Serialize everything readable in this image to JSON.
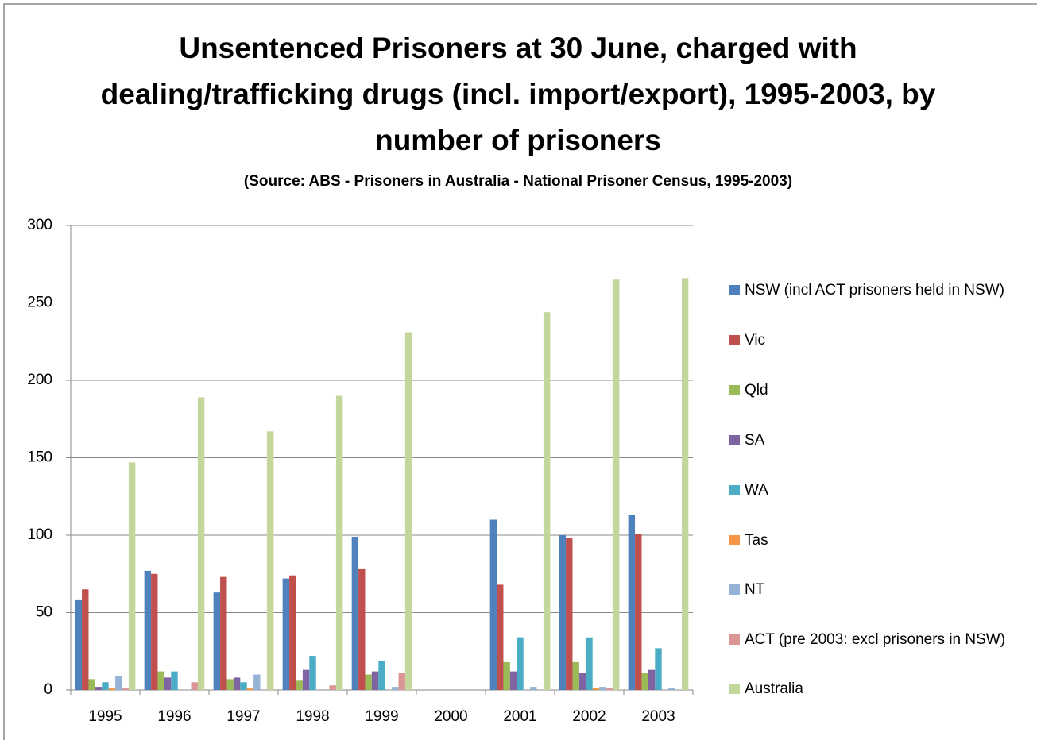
{
  "chart_data": {
    "type": "bar",
    "title": "Unsentenced Prisoners at 30 June, charged with dealing/trafficking drugs (incl. import/export), 1995-2003, by number of prisoners",
    "subtitle": "(Source: ABS - Prisoners in Australia - National Prisoner Census, 1995-2003)",
    "categories": [
      "1995",
      "1996",
      "1997",
      "1998",
      "1999",
      "2000",
      "2001",
      "2002",
      "2003"
    ],
    "series": [
      {
        "name": "NSW (incl ACT prisoners held in NSW)",
        "color": "#4f81bd",
        "values": [
          58,
          77,
          63,
          72,
          99,
          null,
          110,
          100,
          113
        ]
      },
      {
        "name": "Vic",
        "color": "#c0504d",
        "values": [
          65,
          75,
          73,
          74,
          78,
          null,
          68,
          98,
          101
        ]
      },
      {
        "name": "Qld",
        "color": "#9bbb59",
        "values": [
          7,
          12,
          7,
          6,
          10,
          null,
          18,
          18,
          11
        ]
      },
      {
        "name": "SA",
        "color": "#8064a2",
        "values": [
          2,
          8,
          8,
          13,
          12,
          null,
          12,
          11,
          13
        ]
      },
      {
        "name": "WA",
        "color": "#4bacc6",
        "values": [
          5,
          12,
          5,
          22,
          19,
          null,
          34,
          34,
          27
        ]
      },
      {
        "name": "Tas",
        "color": "#f79646",
        "values": [
          1,
          0,
          1,
          0,
          0,
          null,
          0,
          1,
          0
        ]
      },
      {
        "name": "NT",
        "color": "#95b3d7",
        "values": [
          9,
          0,
          10,
          0,
          2,
          null,
          2,
          2,
          1
        ]
      },
      {
        "name": "ACT (pre 2003: excl prisoners in NSW)",
        "color": "#d99694",
        "values": [
          1,
          5,
          0,
          3,
          11,
          null,
          0,
          1,
          0
        ]
      },
      {
        "name": "Australia",
        "color": "#c3d69b",
        "values": [
          147,
          189,
          167,
          190,
          231,
          null,
          244,
          265,
          266
        ]
      }
    ],
    "ylim": [
      0,
      300
    ],
    "yticks": [
      0,
      50,
      100,
      150,
      200,
      250,
      300
    ],
    "grid": true,
    "legend": "right"
  }
}
